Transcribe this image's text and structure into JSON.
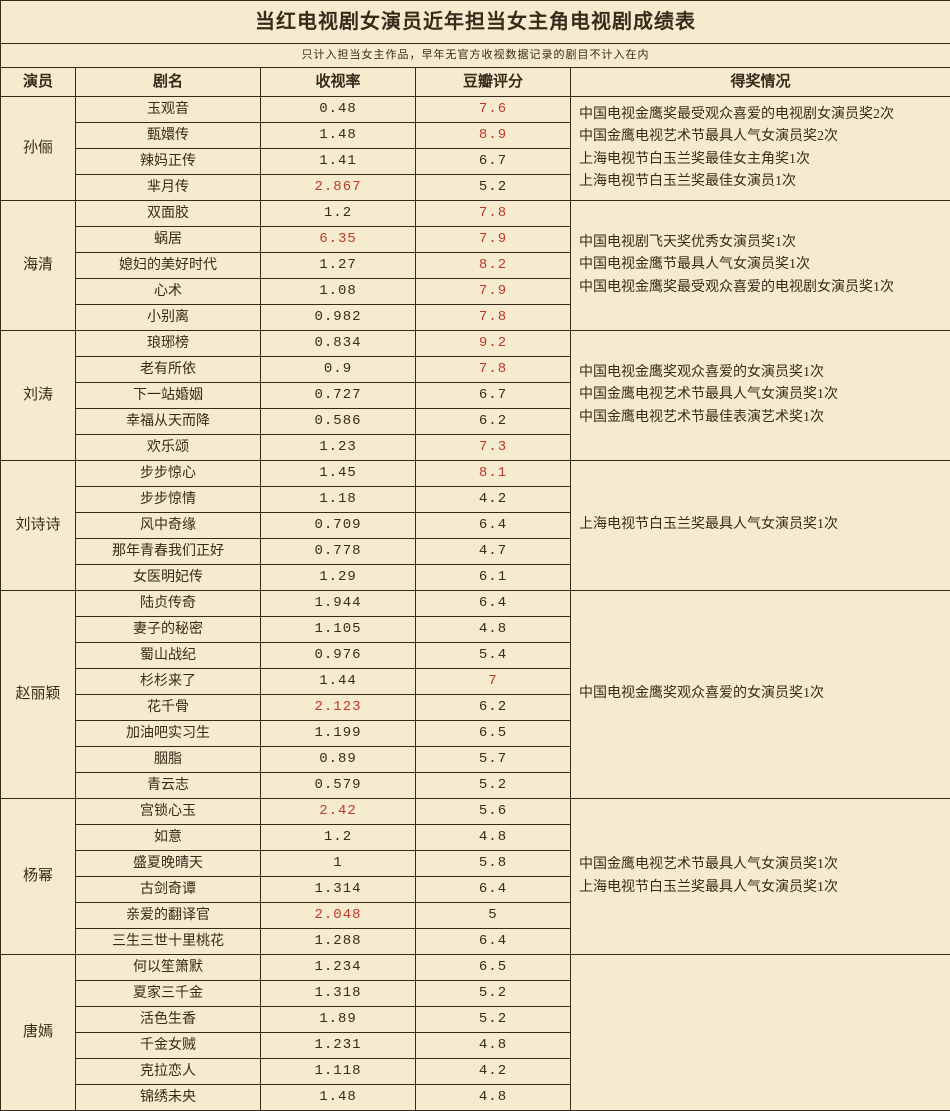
{
  "title": "当红电视剧女演员近年担当女主角电视剧成绩表",
  "subtitle": "只计入担当女主作品，早年无官方收视数据记录的剧目不计入在内",
  "headers": {
    "actor": "演员",
    "drama": "剧名",
    "rating": "收视率",
    "score": "豆瓣评分",
    "awards": "得奖情况"
  },
  "colors": {
    "background": "#f5eccf",
    "border": "#3a2a1a",
    "text": "#3a2a1a",
    "highlight": "#c0392b"
  },
  "actors": [
    {
      "name": "孙俪",
      "dramas": [
        {
          "name": "玉观音",
          "rating": "0.48",
          "rating_hl": false,
          "score": "7.6",
          "score_hl": true
        },
        {
          "name": "甄嬛传",
          "rating": "1.48",
          "rating_hl": false,
          "score": "8.9",
          "score_hl": true
        },
        {
          "name": "辣妈正传",
          "rating": "1.41",
          "rating_hl": false,
          "score": "6.7",
          "score_hl": false
        },
        {
          "name": "芈月传",
          "rating": "2.867",
          "rating_hl": true,
          "score": "5.2",
          "score_hl": false
        }
      ],
      "awards": "中国电视金鹰奖最受观众喜爱的电视剧女演员奖2次\n中国金鹰电视艺术节最具人气女演员奖2次\n上海电视节白玉兰奖最佳女主角奖1次\n上海电视节白玉兰奖最佳女演员1次"
    },
    {
      "name": "海清",
      "dramas": [
        {
          "name": "双面胶",
          "rating": "1.2",
          "rating_hl": false,
          "score": "7.8",
          "score_hl": true
        },
        {
          "name": "蜗居",
          "rating": "6.35",
          "rating_hl": true,
          "score": "7.9",
          "score_hl": true
        },
        {
          "name": "媳妇的美好时代",
          "rating": "1.27",
          "rating_hl": false,
          "score": "8.2",
          "score_hl": true
        },
        {
          "name": "心术",
          "rating": "1.08",
          "rating_hl": false,
          "score": "7.9",
          "score_hl": true
        },
        {
          "name": "小别离",
          "rating": "0.982",
          "rating_hl": false,
          "score": "7.8",
          "score_hl": true
        }
      ],
      "awards": "中国电视剧飞天奖优秀女演员奖1次\n中国电视金鹰节最具人气女演员奖1次\n中国电视金鹰奖最受观众喜爱的电视剧女演员奖1次"
    },
    {
      "name": "刘涛",
      "dramas": [
        {
          "name": "琅琊榜",
          "rating": "0.834",
          "rating_hl": false,
          "score": "9.2",
          "score_hl": true
        },
        {
          "name": "老有所依",
          "rating": "0.9",
          "rating_hl": false,
          "score": "7.8",
          "score_hl": true
        },
        {
          "name": "下一站婚姻",
          "rating": "0.727",
          "rating_hl": false,
          "score": "6.7",
          "score_hl": false
        },
        {
          "name": "幸福从天而降",
          "rating": "0.586",
          "rating_hl": false,
          "score": "6.2",
          "score_hl": false
        },
        {
          "name": "欢乐颂",
          "rating": "1.23",
          "rating_hl": false,
          "score": "7.3",
          "score_hl": true
        }
      ],
      "awards": "中国电视金鹰奖观众喜爱的女演员奖1次\n中国金鹰电视艺术节最具人气女演员奖1次\n中国金鹰电视艺术节最佳表演艺术奖1次"
    },
    {
      "name": "刘诗诗",
      "dramas": [
        {
          "name": "步步惊心",
          "rating": "1.45",
          "rating_hl": false,
          "score": "8.1",
          "score_hl": true
        },
        {
          "name": "步步惊情",
          "rating": "1.18",
          "rating_hl": false,
          "score": "4.2",
          "score_hl": false
        },
        {
          "name": "风中奇缘",
          "rating": "0.709",
          "rating_hl": false,
          "score": "6.4",
          "score_hl": false
        },
        {
          "name": "那年青春我们正好",
          "rating": "0.778",
          "rating_hl": false,
          "score": "4.7",
          "score_hl": false
        },
        {
          "name": "女医明妃传",
          "rating": "1.29",
          "rating_hl": false,
          "score": "6.1",
          "score_hl": false
        }
      ],
      "awards": "上海电视节白玉兰奖最具人气女演员奖1次"
    },
    {
      "name": "赵丽颖",
      "dramas": [
        {
          "name": "陆贞传奇",
          "rating": "1.944",
          "rating_hl": false,
          "score": "6.4",
          "score_hl": false
        },
        {
          "name": "妻子的秘密",
          "rating": "1.105",
          "rating_hl": false,
          "score": "4.8",
          "score_hl": false
        },
        {
          "name": "蜀山战纪",
          "rating": "0.976",
          "rating_hl": false,
          "score": "5.4",
          "score_hl": false
        },
        {
          "name": "杉杉来了",
          "rating": "1.44",
          "rating_hl": false,
          "score": "7",
          "score_hl": true
        },
        {
          "name": "花千骨",
          "rating": "2.123",
          "rating_hl": true,
          "score": "6.2",
          "score_hl": false
        },
        {
          "name": "加油吧实习生",
          "rating": "1.199",
          "rating_hl": false,
          "score": "6.5",
          "score_hl": false
        },
        {
          "name": "胭脂",
          "rating": "0.89",
          "rating_hl": false,
          "score": "5.7",
          "score_hl": false
        },
        {
          "name": "青云志",
          "rating": "0.579",
          "rating_hl": false,
          "score": "5.2",
          "score_hl": false
        }
      ],
      "awards": "中国电视金鹰奖观众喜爱的女演员奖1次"
    },
    {
      "name": "杨幂",
      "dramas": [
        {
          "name": "宫锁心玉",
          "rating": "2.42",
          "rating_hl": true,
          "score": "5.6",
          "score_hl": false
        },
        {
          "name": "如意",
          "rating": "1.2",
          "rating_hl": false,
          "score": "4.8",
          "score_hl": false
        },
        {
          "name": "盛夏晚晴天",
          "rating": "1",
          "rating_hl": false,
          "score": "5.8",
          "score_hl": false
        },
        {
          "name": "古剑奇谭",
          "rating": "1.314",
          "rating_hl": false,
          "score": "6.4",
          "score_hl": false
        },
        {
          "name": "亲爱的翻译官",
          "rating": "2.048",
          "rating_hl": true,
          "score": "5",
          "score_hl": false
        },
        {
          "name": "三生三世十里桃花",
          "rating": "1.288",
          "rating_hl": false,
          "score": "6.4",
          "score_hl": false
        }
      ],
      "awards": "中国金鹰电视艺术节最具人气女演员奖1次\n上海电视节白玉兰奖最具人气女演员奖1次"
    },
    {
      "name": "唐嫣",
      "dramas": [
        {
          "name": "何以笙箫默",
          "rating": "1.234",
          "rating_hl": false,
          "score": "6.5",
          "score_hl": false
        },
        {
          "name": "夏家三千金",
          "rating": "1.318",
          "rating_hl": false,
          "score": "5.2",
          "score_hl": false
        },
        {
          "name": "活色生香",
          "rating": "1.89",
          "rating_hl": false,
          "score": "5.2",
          "score_hl": false
        },
        {
          "name": "千金女贼",
          "rating": "1.231",
          "rating_hl": false,
          "score": "4.8",
          "score_hl": false
        },
        {
          "name": "克拉恋人",
          "rating": "1.118",
          "rating_hl": false,
          "score": "4.2",
          "score_hl": false
        },
        {
          "name": "锦绣未央",
          "rating": "1.48",
          "rating_hl": false,
          "score": "4.8",
          "score_hl": false
        }
      ],
      "awards": ""
    }
  ]
}
